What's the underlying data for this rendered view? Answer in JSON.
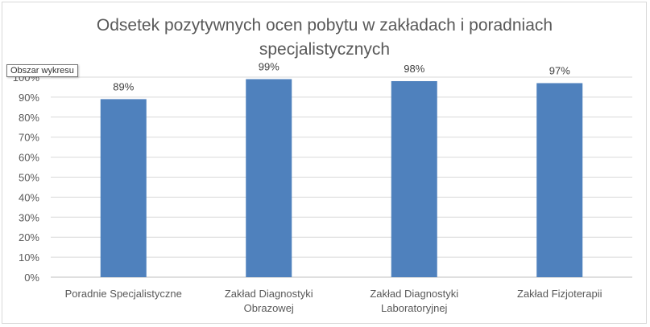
{
  "tooltip": "Obszar wykresu",
  "chart_data": {
    "type": "bar",
    "title_lines": [
      "Odsetek pozytywnych ocen pobytu w zakładach i poradniach",
      "specjalistycznych"
    ],
    "categories": [
      [
        "Poradnie Specjalistyczne"
      ],
      [
        "Zakład Diagnostyki",
        "Obrazowej"
      ],
      [
        "Zakład Diagnostyki",
        "Laboratoryjnej"
      ],
      [
        "Zakład Fizjoterapii"
      ]
    ],
    "values": [
      89,
      99,
      98,
      97
    ],
    "data_labels": [
      "89%",
      "99%",
      "98%",
      "97%"
    ],
    "y_ticks": [
      "0%",
      "10%",
      "20%",
      "30%",
      "40%",
      "50%",
      "60%",
      "70%",
      "80%",
      "90%",
      "100%"
    ],
    "ylim": [
      0,
      100
    ],
    "grid": true,
    "legend": "none",
    "bar_color": "#4f81bd"
  }
}
